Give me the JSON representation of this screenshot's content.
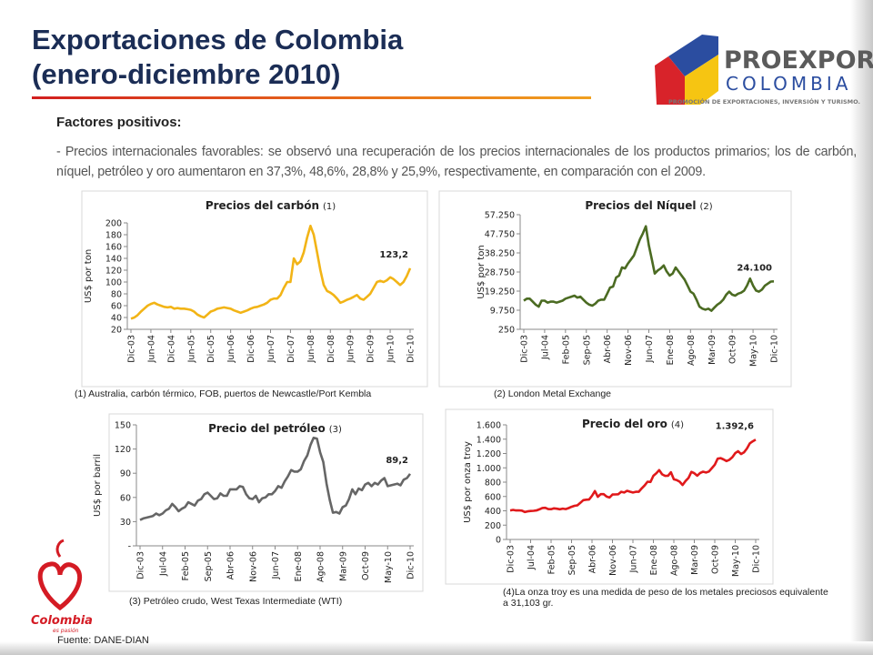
{
  "slide": {
    "title_line1": "Exportaciones de Colombia",
    "title_line2": "(enero-diciembre 2010)",
    "subtitle": "Factores positivos:",
    "paragraph": "- Precios internacionales favorables: se observó una recuperación de los precios internacionales de los productos primarios; los de carbón, níquel, petróleo y oro aumentaron en 37,3%, 48,6%, 28,8% y 25,9%, respectivamente, en comparación con el 2009.",
    "source": "Fuente: DANE-DIAN"
  },
  "logos": {
    "proexport_name": "PROEXPORT",
    "proexport_country": "COLOMBIA",
    "proexport_tagline": "PROMOCIÓN DE EXPORTACIONES, INVERSIÓN Y TURISMO.",
    "colombia_name": "Colombia",
    "colombia_motto": "es pasión"
  },
  "footnotes": [
    "(1) Australia, carbón térmico, FOB, puertos de Newcastle/Port Kembla",
    "(2) London Metal Exchange",
    "(3) Petróleo crudo, West Texas Intermediate (WTI)",
    "(4)La onza troy es una medida de peso de los metales preciosos equivalente a 31,103 gr."
  ],
  "chart_data": [
    {
      "type": "line",
      "title": "Precios del carbón",
      "title_note": "(1)",
      "ylabel": "US$ por ton",
      "color": "#f2b416",
      "ylim": [
        20,
        200
      ],
      "yticks": [
        20,
        40,
        60,
        80,
        100,
        120,
        140,
        160,
        180,
        200
      ],
      "categories": [
        "Dic-03",
        null,
        null,
        null,
        null,
        null,
        "Jun-04",
        null,
        null,
        null,
        null,
        null,
        "Dic-04",
        null,
        null,
        null,
        null,
        null,
        "Jun-05",
        null,
        null,
        null,
        null,
        null,
        "Dic-05",
        null,
        null,
        null,
        null,
        null,
        "Jun-06",
        null,
        null,
        null,
        null,
        null,
        "Dic-06",
        null,
        null,
        null,
        null,
        null,
        "Jun-07",
        null,
        null,
        null,
        null,
        null,
        "Dic-07",
        null,
        null,
        null,
        null,
        null,
        "Jun-08",
        null,
        null,
        null,
        null,
        null,
        "Dic-08",
        null,
        null,
        null,
        null,
        null,
        "Jun-09",
        null,
        null,
        null,
        null,
        null,
        "Dic-09",
        null,
        null,
        null,
        null,
        null,
        "Jun-10",
        null,
        null,
        null,
        null,
        null,
        "Dic-10"
      ],
      "values": [
        38,
        40,
        44,
        50,
        55,
        60,
        63,
        65,
        62,
        60,
        58,
        57,
        58,
        55,
        56,
        55,
        55,
        54,
        53,
        50,
        45,
        42,
        40,
        45,
        50,
        52,
        55,
        56,
        57,
        56,
        55,
        52,
        50,
        48,
        50,
        52,
        55,
        57,
        58,
        60,
        62,
        65,
        70,
        72,
        72,
        78,
        90,
        100,
        100,
        140,
        130,
        135,
        150,
        175,
        195,
        180,
        150,
        120,
        95,
        85,
        82,
        78,
        72,
        65,
        67,
        70,
        72,
        75,
        78,
        72,
        70,
        75,
        80,
        90,
        100,
        102,
        100,
        103,
        108,
        105,
        100,
        95,
        100,
        110,
        123.2
      ],
      "value_labels": [
        null,
        null,
        null,
        null,
        null,
        null,
        null,
        null,
        null,
        null,
        null,
        null,
        null,
        null,
        null,
        null,
        null,
        null,
        null,
        null,
        null,
        null,
        null,
        null,
        null,
        null,
        null,
        null,
        null,
        null,
        null,
        null,
        null,
        null,
        null,
        null,
        null,
        null,
        null,
        null,
        null,
        null,
        null,
        null,
        null,
        null,
        null,
        null,
        null,
        null,
        null,
        null,
        null,
        null,
        null,
        null,
        null,
        null,
        null,
        null,
        null,
        null,
        null,
        null,
        null,
        null,
        null,
        null,
        null,
        null,
        null,
        null,
        null,
        null,
        null,
        null,
        null,
        null,
        null,
        null,
        null,
        null,
        null,
        null,
        "123,2"
      ]
    },
    {
      "type": "line",
      "title": "Precios del Níquel",
      "title_note": "(2)",
      "ylabel": "US$ por ton",
      "color": "#4b6b22",
      "ylim": [
        250,
        57250
      ],
      "yticks": [
        250,
        {
          "value": 9750,
          "label": "9.750"
        },
        {
          "value": 19250,
          "label": "19.250"
        },
        {
          "value": 28750,
          "label": "28.750"
        },
        {
          "value": 38250,
          "label": "38.250"
        },
        {
          "value": 47750,
          "label": "47.750"
        },
        {
          "value": 57250,
          "label": "57.250"
        }
      ],
      "categories": [
        "Dic-03",
        null,
        null,
        null,
        null,
        null,
        null,
        "Jul-04",
        null,
        null,
        null,
        null,
        null,
        null,
        "Feb-05",
        null,
        null,
        null,
        null,
        null,
        null,
        "Sep-05",
        null,
        null,
        null,
        null,
        null,
        null,
        "Abr-06",
        null,
        null,
        null,
        null,
        null,
        null,
        "Nov-06",
        null,
        null,
        null,
        null,
        null,
        null,
        "Jun-07",
        null,
        null,
        null,
        null,
        null,
        null,
        "Ene-08",
        null,
        null,
        null,
        null,
        null,
        null,
        "Ago-08",
        null,
        null,
        null,
        null,
        null,
        null,
        "Mar-09",
        null,
        null,
        null,
        null,
        null,
        null,
        "Oct-09",
        null,
        null,
        null,
        null,
        null,
        null,
        "May-10",
        null,
        null,
        null,
        null,
        null,
        null,
        "Dic-10"
      ],
      "values": [
        14500,
        15500,
        15500,
        14000,
        12500,
        11500,
        14500,
        14500,
        13500,
        14000,
        14000,
        13500,
        14000,
        14500,
        15500,
        16000,
        16500,
        17000,
        16000,
        16500,
        15000,
        13500,
        12500,
        12000,
        13000,
        14500,
        15000,
        15000,
        18000,
        21000,
        21500,
        26000,
        27000,
        31000,
        30500,
        33000,
        35000,
        37000,
        41000,
        45000,
        48000,
        51500,
        42000,
        35000,
        28000,
        29500,
        30500,
        32000,
        29000,
        27000,
        28000,
        31000,
        29000,
        27000,
        25000,
        22000,
        19000,
        18000,
        15000,
        11500,
        10500,
        10000,
        10500,
        9500,
        11000,
        12500,
        13500,
        15000,
        17500,
        19000,
        17500,
        17000,
        18000,
        18500,
        19500,
        22000,
        25500,
        22000,
        19500,
        19000,
        20000,
        22000,
        23000,
        24000,
        24100
      ],
      "value_labels": [
        null,
        null,
        null,
        null,
        null,
        null,
        null,
        null,
        null,
        null,
        null,
        null,
        null,
        null,
        null,
        null,
        null,
        null,
        null,
        null,
        null,
        null,
        null,
        null,
        null,
        null,
        null,
        null,
        null,
        null,
        null,
        null,
        null,
        null,
        null,
        null,
        null,
        null,
        null,
        null,
        null,
        null,
        null,
        null,
        null,
        null,
        null,
        null,
        null,
        null,
        null,
        null,
        null,
        null,
        null,
        null,
        null,
        null,
        null,
        null,
        null,
        null,
        null,
        null,
        null,
        null,
        null,
        null,
        null,
        null,
        null,
        null,
        null,
        null,
        null,
        null,
        null,
        null,
        null,
        null,
        null,
        null,
        null,
        null,
        "24.100"
      ]
    },
    {
      "type": "line",
      "title": "Precio del petróleo",
      "title_note": "(3)",
      "ylabel": "US$ por barril",
      "color": "#666666",
      "ylim": [
        0,
        150
      ],
      "yticks": [
        {
          "value": 0,
          "label": "-"
        },
        30,
        60,
        90,
        120,
        150
      ],
      "categories": [
        "Dic-03",
        null,
        null,
        null,
        null,
        null,
        null,
        "Jul-04",
        null,
        null,
        null,
        null,
        null,
        null,
        "Feb-05",
        null,
        null,
        null,
        null,
        null,
        null,
        "Sep-05",
        null,
        null,
        null,
        null,
        null,
        null,
        "Abr-06",
        null,
        null,
        null,
        null,
        null,
        null,
        "Nov-06",
        null,
        null,
        null,
        null,
        null,
        null,
        "Jun-07",
        null,
        null,
        null,
        null,
        null,
        null,
        "Ene-08",
        null,
        null,
        null,
        null,
        null,
        null,
        "Ago-08",
        null,
        null,
        null,
        null,
        null,
        null,
        "Mar-09",
        null,
        null,
        null,
        null,
        null,
        null,
        "Oct-09",
        null,
        null,
        null,
        null,
        null,
        null,
        "May-10",
        null,
        null,
        null,
        null,
        null,
        null,
        "Dic-10"
      ],
      "values": [
        32,
        34,
        35,
        36,
        37,
        40,
        38,
        40,
        44,
        46,
        52,
        48,
        43,
        46,
        48,
        54,
        52,
        50,
        56,
        58,
        64,
        66,
        62,
        58,
        59,
        65,
        62,
        62,
        70,
        70,
        70,
        74,
        73,
        64,
        59,
        58,
        62,
        54,
        59,
        60,
        64,
        64,
        68,
        74,
        72,
        80,
        86,
        94,
        92,
        92,
        95,
        105,
        112,
        125,
        134,
        133,
        116,
        104,
        77,
        57,
        41,
        42,
        40,
        48,
        50,
        58,
        70,
        64,
        71,
        69,
        76,
        78,
        74,
        78,
        76,
        81,
        84,
        74,
        75,
        76,
        77,
        75,
        82,
        84,
        89.2
      ],
      "value_labels": [
        null,
        null,
        null,
        null,
        null,
        null,
        null,
        null,
        null,
        null,
        null,
        null,
        null,
        null,
        null,
        null,
        null,
        null,
        null,
        null,
        null,
        null,
        null,
        null,
        null,
        null,
        null,
        null,
        null,
        null,
        null,
        null,
        null,
        null,
        null,
        null,
        null,
        null,
        null,
        null,
        null,
        null,
        null,
        null,
        null,
        null,
        null,
        null,
        null,
        null,
        null,
        null,
        null,
        null,
        null,
        null,
        null,
        null,
        null,
        null,
        null,
        null,
        null,
        null,
        null,
        null,
        null,
        null,
        null,
        null,
        null,
        null,
        null,
        null,
        null,
        null,
        null,
        null,
        null,
        null,
        null,
        null,
        null,
        null,
        "89,2"
      ]
    },
    {
      "type": "line",
      "title": "Precio del oro",
      "title_note": "(4)",
      "ylabel": "US$ por onza troy",
      "color": "#e0191b",
      "ylim": [
        0,
        1600
      ],
      "yticks": [
        0,
        200,
        400,
        600,
        800,
        {
          "value": 1000,
          "label": "1.000"
        },
        {
          "value": 1200,
          "label": "1.200"
        },
        {
          "value": 1400,
          "label": "1.400"
        },
        {
          "value": 1600,
          "label": "1.600"
        }
      ],
      "categories": [
        "Dic-03",
        null,
        null,
        null,
        null,
        null,
        null,
        "Jul-04",
        null,
        null,
        null,
        null,
        null,
        null,
        "Feb-05",
        null,
        null,
        null,
        null,
        null,
        null,
        "Sep-05",
        null,
        null,
        null,
        null,
        null,
        null,
        "Abr-06",
        null,
        null,
        null,
        null,
        null,
        null,
        "Nov-06",
        null,
        null,
        null,
        null,
        null,
        null,
        "Jun-07",
        null,
        null,
        null,
        null,
        null,
        null,
        "Ene-08",
        null,
        null,
        null,
        null,
        null,
        null,
        "Ago-08",
        null,
        null,
        null,
        null,
        null,
        null,
        "Mar-09",
        null,
        null,
        null,
        null,
        null,
        null,
        "Oct-09",
        null,
        null,
        null,
        null,
        null,
        null,
        "May-10",
        null,
        null,
        null,
        null,
        null,
        null,
        "Dic-10"
      ],
      "values": [
        405,
        413,
        405,
        406,
        403,
        383,
        392,
        398,
        400,
        405,
        420,
        439,
        442,
        424,
        423,
        434,
        429,
        422,
        430,
        424,
        438,
        456,
        470,
        476,
        510,
        549,
        555,
        557,
        610,
        676,
        596,
        633,
        632,
        598,
        585,
        627,
        629,
        631,
        665,
        655,
        679,
        667,
        655,
        665,
        665,
        712,
        754,
        806,
        803,
        889,
        923,
        968,
        909,
        888,
        889,
        939,
        839,
        829,
        806,
        760,
        816,
        858,
        943,
        924,
        890,
        928,
        946,
        934,
        949,
        996,
        1043,
        1127,
        1135,
        1117,
        1095,
        1113,
        1148,
        1205,
        1232,
        1193,
        1215,
        1270,
        1342,
        1370,
        1392.6
      ],
      "value_labels": [
        null,
        null,
        null,
        null,
        null,
        null,
        null,
        null,
        null,
        null,
        null,
        null,
        null,
        null,
        null,
        null,
        null,
        null,
        null,
        null,
        null,
        null,
        null,
        null,
        null,
        null,
        null,
        null,
        null,
        null,
        null,
        null,
        null,
        null,
        null,
        null,
        null,
        null,
        null,
        null,
        null,
        null,
        null,
        null,
        null,
        null,
        null,
        null,
        null,
        null,
        null,
        null,
        null,
        null,
        null,
        null,
        null,
        null,
        null,
        null,
        null,
        null,
        null,
        null,
        null,
        null,
        null,
        null,
        null,
        null,
        null,
        null,
        null,
        null,
        null,
        null,
        null,
        null,
        null,
        null,
        null,
        null,
        null,
        null,
        "1.392,6"
      ]
    }
  ]
}
